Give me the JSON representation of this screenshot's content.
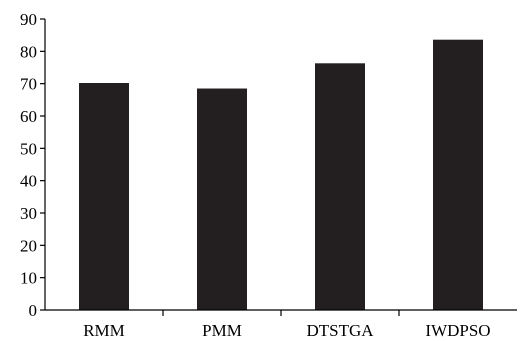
{
  "chart_data": {
    "type": "bar",
    "categories": [
      "RMM",
      "PMM",
      "DTSTGA",
      "IWDPSO"
    ],
    "values": [
      70.2,
      68.5,
      76.3,
      83.6
    ],
    "title": "",
    "xlabel": "",
    "ylabel": "",
    "ylim": [
      0,
      90
    ],
    "yticks": [
      "0",
      "10",
      "20",
      "30",
      "40",
      "50",
      "60",
      "70",
      "80",
      "90"
    ],
    "bar_color": "#231f20",
    "grid": false,
    "legend": "none"
  }
}
